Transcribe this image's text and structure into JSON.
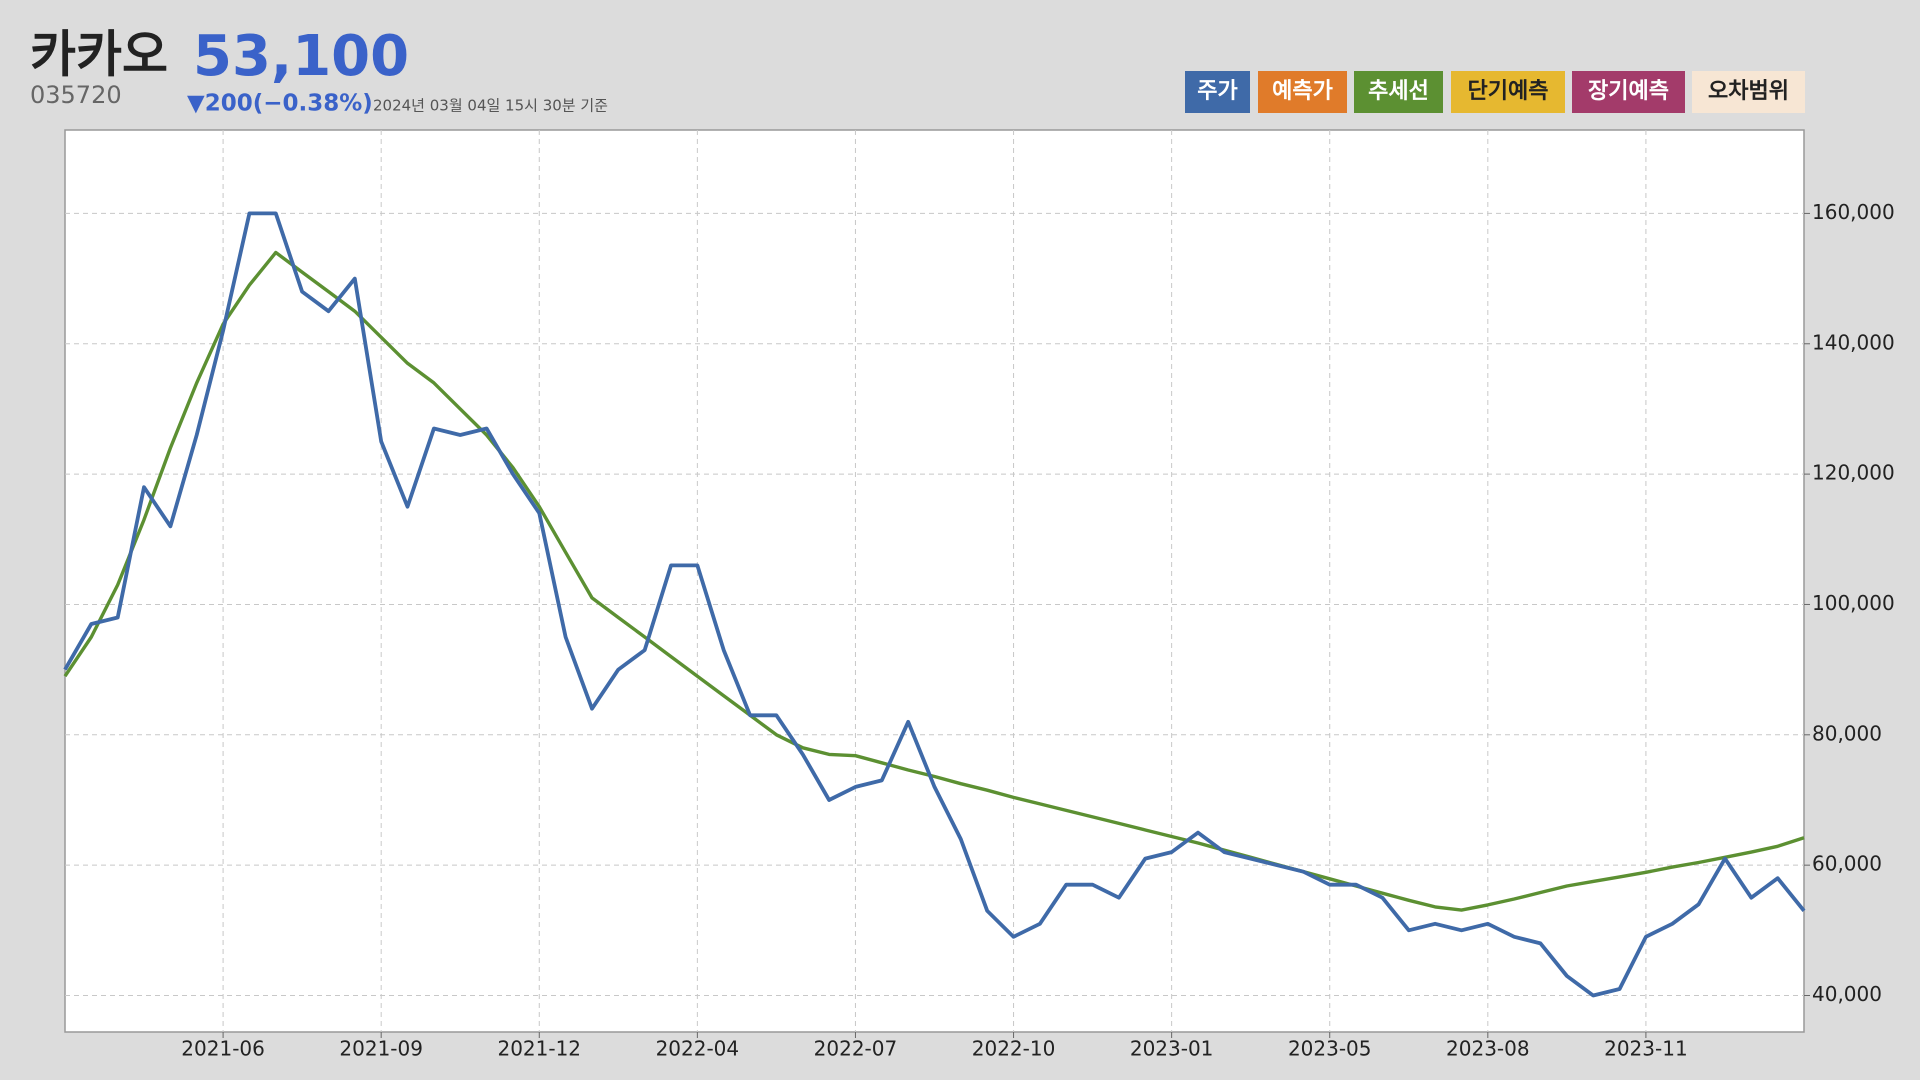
{
  "header": {
    "title": "카카오",
    "price": "53,100",
    "code": "035720",
    "change": "▼200(−0.38%)",
    "timestamp": "2024년 03월 04일 15시 30분 기준"
  },
  "chart_data": {
    "type": "line",
    "categories": [
      null,
      null,
      null,
      null,
      null,
      null,
      "2021-06",
      null,
      null,
      null,
      null,
      null,
      "2021-09",
      null,
      null,
      null,
      null,
      null,
      "2021-12",
      null,
      null,
      null,
      null,
      null,
      "2022-04",
      null,
      null,
      null,
      null,
      null,
      "2022-07",
      null,
      null,
      null,
      null,
      null,
      "2022-10",
      null,
      null,
      null,
      null,
      null,
      "2023-01",
      null,
      null,
      null,
      null,
      null,
      "2023-05",
      null,
      null,
      null,
      null,
      null,
      "2023-08",
      null,
      null,
      null,
      null,
      null,
      "2023-11",
      null,
      null,
      null,
      null,
      null,
      null
    ],
    "series": [
      {
        "name": "주가",
        "color": "#3f6aa8",
        "values": [
          90000,
          97000,
          98000,
          118000,
          112000,
          126000,
          142000,
          160000,
          160000,
          148000,
          145000,
          150000,
          125000,
          115000,
          127000,
          126000,
          127000,
          120000,
          114000,
          95000,
          84000,
          90000,
          93000,
          106000,
          106000,
          93000,
          83000,
          83000,
          77000,
          70000,
          72000,
          73000,
          82000,
          72000,
          64000,
          53000,
          49000,
          51000,
          57000,
          57000,
          55000,
          61000,
          62000,
          65000,
          62000,
          61000,
          60000,
          59000,
          57000,
          57000,
          55000,
          50000,
          51000,
          50000,
          51000,
          49000,
          48000,
          43000,
          40000,
          41000,
          49000,
          51000,
          54000,
          61000,
          55000,
          58000,
          53000
        ]
      },
      {
        "name": "추세선",
        "color": "#5c9032",
        "values": [
          89000,
          95000,
          103000,
          113000,
          124000,
          134000,
          143000,
          149000,
          154000,
          151000,
          148000,
          145000,
          141000,
          137000,
          134000,
          130000,
          126000,
          121000,
          115000,
          108000,
          101000,
          98000,
          95000,
          92000,
          89000,
          86000,
          83000,
          80000,
          78000,
          77000,
          76800,
          75700,
          74600,
          73600,
          72500,
          71500,
          70400,
          69400,
          68400,
          67400,
          66400,
          65400,
          64400,
          63400,
          62300,
          61200,
          60100,
          59000,
          57900,
          56800,
          55700,
          54600,
          53600,
          53100,
          53900,
          54800,
          55800,
          56800,
          57500,
          58200,
          58900,
          59700,
          60400,
          61200,
          62000,
          62900,
          64200
        ]
      }
    ],
    "toggles": [
      {
        "label": "예측가",
        "color": "#e07b2a"
      },
      {
        "label": "단기예측",
        "color": "#e6b830"
      },
      {
        "label": "장기예측",
        "color": "#a33b6a"
      },
      {
        "label": "오차범위",
        "color": "#f7e6d4"
      }
    ],
    "ylim": [
      34400,
      172800
    ],
    "yticks": [
      {
        "value": 40000,
        "label": "40,000"
      },
      {
        "value": 60000,
        "label": "60,000"
      },
      {
        "value": 80000,
        "label": "80,000"
      },
      {
        "value": 100000,
        "label": "100,000"
      },
      {
        "value": 120000,
        "label": "120,000"
      },
      {
        "value": 140000,
        "label": "140,000"
      },
      {
        "value": 160000,
        "label": "160,000"
      }
    ],
    "grid": true
  }
}
